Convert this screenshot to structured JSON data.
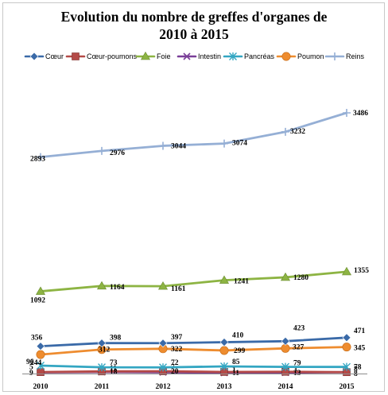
{
  "chart_data": {
    "type": "line",
    "title_line1": "Evolution du nombre de greffes d'organes de",
    "title_line2": "2010 à 2015",
    "xlabel": "",
    "ylabel": "",
    "x": [
      "2010",
      "2011",
      "2012",
      "2013",
      "2014",
      "2015"
    ],
    "ylim": [
      0,
      3700
    ],
    "grid": false,
    "legend_position": "top",
    "series": [
      {
        "name": "Cœur",
        "values": [
          356,
          398,
          397,
          410,
          423,
          471
        ],
        "color": "#3a6aa8",
        "marker": "diamond"
      },
      {
        "name": "Cœur-poumons",
        "values": [
          9,
          18,
          20,
          11,
          13,
          8
        ],
        "color": "#b44a47",
        "marker": "square"
      },
      {
        "name": "Foie",
        "values": [
          1092,
          1164,
          1161,
          1241,
          1280,
          1355
        ],
        "color": "#8db443",
        "marker": "triangle"
      },
      {
        "name": "Intestin",
        "values": [
          5,
          11,
          7,
          1,
          3,
          8
        ],
        "color": "#7a3f98",
        "marker": "x"
      },
      {
        "name": "Pancréas",
        "values": [
          96,
          73,
          72,
          85,
          79,
          78
        ],
        "color": "#33a6c2",
        "marker": "asterisk"
      },
      {
        "name": "Poumon",
        "values": [
          244,
          312,
          322,
          299,
          327,
          345
        ],
        "color": "#ee8c2f",
        "marker": "circle"
      },
      {
        "name": "Reins",
        "values": [
          2893,
          2976,
          3044,
          3074,
          3232,
          3486
        ],
        "color": "#95afd5",
        "marker": "plus"
      }
    ]
  }
}
